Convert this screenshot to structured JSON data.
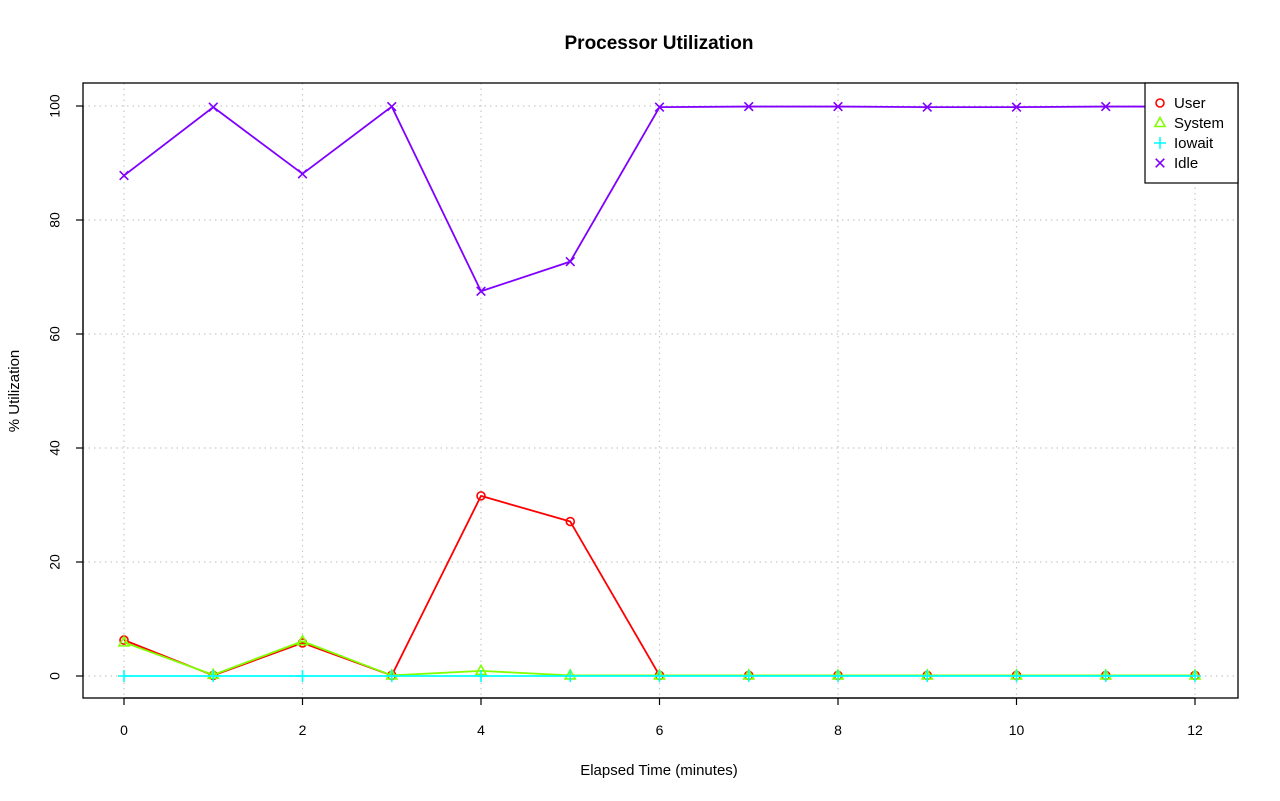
{
  "chart_data": {
    "type": "line",
    "title": "Processor Utilization",
    "xlabel": "Elapsed Time (minutes)",
    "ylabel": "% Utilization",
    "xlim": [
      0,
      12
    ],
    "ylim": [
      0,
      100
    ],
    "x_ticks": [
      0,
      2,
      4,
      6,
      8,
      10,
      12
    ],
    "y_ticks": [
      0,
      20,
      40,
      60,
      80,
      100
    ],
    "grid": true,
    "legend_position": "top-right",
    "x": [
      0,
      1,
      2,
      3,
      4,
      5,
      6,
      7,
      8,
      9,
      10,
      11,
      12
    ],
    "series": [
      {
        "name": "User",
        "color": "#ff0000",
        "marker": "circle",
        "values": [
          6.3,
          0.1,
          5.8,
          0.1,
          31.6,
          27.1,
          0.1,
          0.1,
          0.1,
          0.1,
          0.1,
          0.1,
          0.1
        ]
      },
      {
        "name": "System",
        "color": "#80ff00",
        "marker": "triangle",
        "values": [
          5.9,
          0.2,
          6.1,
          0.1,
          0.9,
          0.1,
          0.1,
          0.1,
          0.1,
          0.1,
          0.1,
          0.1,
          0.1
        ]
      },
      {
        "name": "Iowait",
        "color": "#00ffff",
        "marker": "plus",
        "values": [
          0,
          0,
          0,
          0,
          0,
          0,
          0,
          0,
          0,
          0,
          0,
          0,
          0
        ]
      },
      {
        "name": "Idle",
        "color": "#8000ff",
        "marker": "cross",
        "values": [
          87.8,
          99.8,
          88.1,
          99.9,
          67.5,
          72.7,
          99.8,
          99.9,
          99.9,
          99.8,
          99.8,
          99.9,
          99.9
        ]
      }
    ]
  }
}
